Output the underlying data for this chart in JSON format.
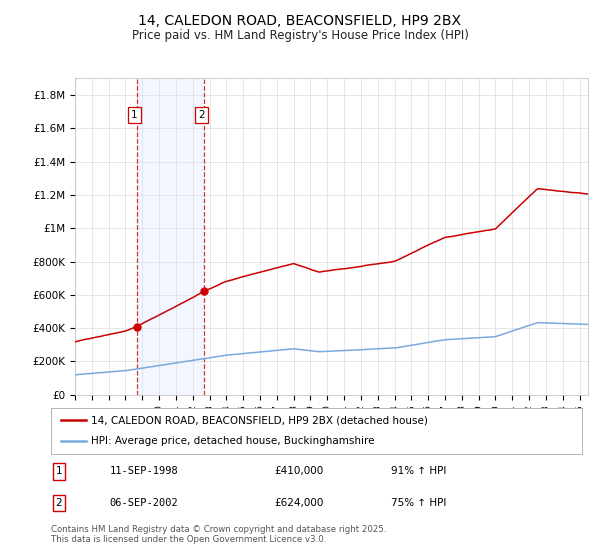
{
  "title": "14, CALEDON ROAD, BEACONSFIELD, HP9 2BX",
  "subtitle": "Price paid vs. HM Land Registry's House Price Index (HPI)",
  "title_fontsize": 10,
  "subtitle_fontsize": 8.5,
  "ylim": [
    0,
    1900000
  ],
  "yticks": [
    0,
    200000,
    400000,
    600000,
    800000,
    1000000,
    1200000,
    1400000,
    1600000,
    1800000
  ],
  "ytick_labels": [
    "£0",
    "£200K",
    "£400K",
    "£600K",
    "£800K",
    "£1M",
    "£1.2M",
    "£1.4M",
    "£1.6M",
    "£1.8M"
  ],
  "red_color": "#cc0000",
  "blue_color": "#7aaadd",
  "sale1_date_num": 1998.69,
  "sale1_price": 410000,
  "sale2_date_num": 2002.68,
  "sale2_price": 624000,
  "sale1_date_str": "11-SEP-1998",
  "sale1_pct": "91% ↑ HPI",
  "sale2_date_str": "06-SEP-2002",
  "sale2_pct": "75% ↑ HPI",
  "legend_label_red": "14, CALEDON ROAD, BEACONSFIELD, HP9 2BX (detached house)",
  "legend_label_blue": "HPI: Average price, detached house, Buckinghamshire",
  "footer": "Contains HM Land Registry data © Crown copyright and database right 2025.\nThis data is licensed under the Open Government Licence v3.0.",
  "background_color": "#ffffff",
  "shaded_color": "#cce0ff"
}
